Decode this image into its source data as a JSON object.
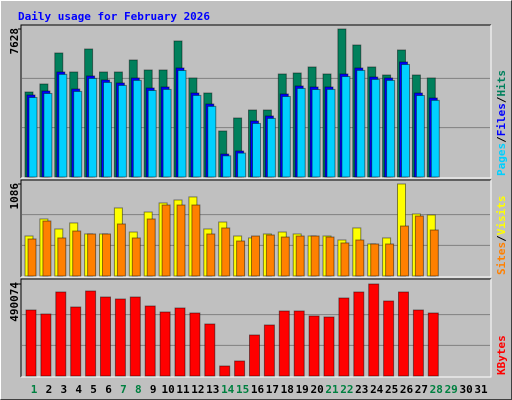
{
  "chart_data": [
    {
      "type": "bar",
      "title": "Daily usage for February 2026",
      "title_color": "#0000ff",
      "categories": [
        "1",
        "2",
        "3",
        "4",
        "5",
        "6",
        "7",
        "8",
        "9",
        "10",
        "11",
        "12",
        "13",
        "14",
        "15",
        "16",
        "17",
        "18",
        "19",
        "20",
        "21",
        "22",
        "23",
        "24",
        "25",
        "26",
        "27",
        "28",
        "29",
        "30",
        "31"
      ],
      "category_colors": [
        "#008040",
        "#000000",
        "#000000",
        "#000000",
        "#000000",
        "#000000",
        "#008040",
        "#008040",
        "#000000",
        "#000000",
        "#000000",
        "#000000",
        "#000000",
        "#008040",
        "#008040",
        "#000000",
        "#000000",
        "#000000",
        "#000000",
        "#000000",
        "#008040",
        "#008040",
        "#000000",
        "#000000",
        "#000000",
        "#000000",
        "#000000",
        "#008040",
        "#008040",
        "#000000",
        "#000000"
      ],
      "legend_separator": "/",
      "ylim": [
        0,
        7628
      ],
      "yticks": [
        7628
      ],
      "series": [
        {
          "name": "Hits",
          "color": "#00805c",
          "values": [
            4381,
            4793,
            6391,
            5412,
            6597,
            5412,
            5412,
            6030,
            5515,
            5515,
            7010,
            5103,
            4329,
            2371,
            3041,
            3453,
            3453,
            5309,
            5360,
            5670,
            5309,
            7628,
            6803,
            5670,
            5257,
            6546,
            5257,
            5103,
            null,
            null,
            null
          ]
        },
        {
          "name": "Files",
          "color": "#0000ff",
          "values": [
            4226,
            4432,
            5412,
            4536,
            5206,
            5000,
            4845,
            5103,
            4587,
            4639,
            5618,
            4329,
            3762,
            1185,
            1340,
            2886,
            3144,
            4278,
            4690,
            4639,
            4639,
            5309,
            5618,
            5154,
            5103,
            5927,
            4329,
            4072,
            null,
            null,
            null
          ]
        },
        {
          "name": "Pages",
          "color": "#00d0ff",
          "values": [
            4098,
            4305,
            5290,
            4410,
            5080,
            4875,
            4720,
            4980,
            4460,
            4515,
            5490,
            4205,
            3640,
            1090,
            1230,
            2760,
            3020,
            4150,
            4565,
            4510,
            4515,
            5180,
            5495,
            5030,
            4980,
            5800,
            4200,
            3950,
            null,
            null,
            null
          ]
        }
      ]
    },
    {
      "type": "bar",
      "ylim": [
        0,
        1086
      ],
      "yticks": [
        1086
      ],
      "series": [
        {
          "name": "Visits",
          "color": "#ffff00",
          "values": [
            472,
            673,
            555,
            626,
            496,
            496,
            803,
            519,
            755,
            862,
            897,
            933,
            555,
            637,
            472,
            449,
            496,
            519,
            496,
            472,
            472,
            425,
            567,
            378,
            449,
            1086,
            732,
            720,
            null,
            null,
            null
          ]
        },
        {
          "name": "Sites",
          "color": "#ff8000",
          "values": [
            437,
            649,
            449,
            531,
            496,
            496,
            614,
            449,
            673,
            838,
            838,
            838,
            496,
            567,
            413,
            472,
            484,
            460,
            472,
            472,
            460,
            390,
            425,
            378,
            378,
            590,
            708,
            543,
            null,
            null,
            null
          ]
        }
      ]
    },
    {
      "type": "bar",
      "ylim": [
        0,
        490074
      ],
      "yticks": [
        490074
      ],
      "series": [
        {
          "name": "KBytes",
          "color": "#ff0000",
          "values": [
            351575,
            330267,
            447459,
            367555,
            452786,
            420824,
            410170,
            420824,
            372882,
            340921,
            362228,
            335594,
            276998,
            53269,
            79903,
            218402,
            271672,
            346248,
            346248,
            319613,
            314287,
            415497,
            447459,
            490074,
            399517,
            447459,
            351575,
            335594,
            null,
            null,
            null
          ]
        }
      ]
    }
  ]
}
